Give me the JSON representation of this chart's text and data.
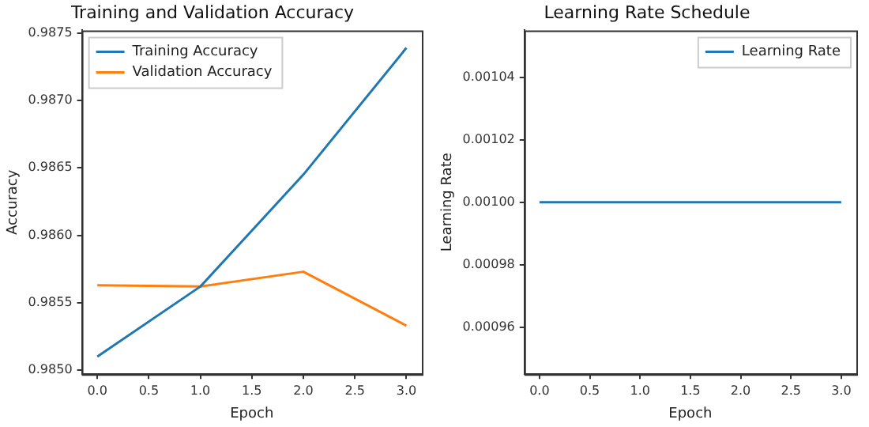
{
  "chart_data": [
    {
      "type": "line",
      "title": "Training and Validation Accuracy",
      "xlabel": "Epoch",
      "ylabel": "Accuracy",
      "x": [
        0,
        1,
        2,
        3
      ],
      "series": [
        {
          "name": "Training Accuracy",
          "color": "#1f77b4",
          "values": [
            0.9851,
            0.98562,
            0.98645,
            0.98739
          ]
        },
        {
          "name": "Validation Accuracy",
          "color": "#ff7f0e",
          "values": [
            0.98563,
            0.98562,
            0.98573,
            0.98533
          ]
        }
      ],
      "xlim": [
        -0.15,
        3.15
      ],
      "ylim": [
        0.98497,
        0.98752
      ],
      "xticks": [
        {
          "value": 0,
          "label": "0.0"
        },
        {
          "value": 0.5,
          "label": "0.5"
        },
        {
          "value": 1,
          "label": "1.0"
        },
        {
          "value": 1.5,
          "label": "1.5"
        },
        {
          "value": 2,
          "label": "2.0"
        },
        {
          "value": 2.5,
          "label": "2.5"
        },
        {
          "value": 3,
          "label": "3.0"
        }
      ],
      "yticks": [
        {
          "value": 0.985,
          "label": "0.9850"
        },
        {
          "value": 0.9855,
          "label": "0.9855"
        },
        {
          "value": 0.986,
          "label": "0.9860"
        },
        {
          "value": 0.9865,
          "label": "0.9865"
        },
        {
          "value": 0.987,
          "label": "0.9870"
        },
        {
          "value": 0.9875,
          "label": "0.9875"
        }
      ],
      "grid": false,
      "legend": "top left",
      "marker": "none",
      "line_style": "solid"
    },
    {
      "type": "line",
      "title": "Learning Rate Schedule",
      "xlabel": "Epoch",
      "ylabel": "Learning Rate",
      "x": [
        0,
        1,
        2,
        3
      ],
      "series": [
        {
          "name": "Learning Rate",
          "color": "#1f77b4",
          "values": [
            0.001,
            0.001,
            0.001,
            0.001
          ]
        }
      ],
      "xlim": [
        -0.15,
        3.15
      ],
      "ylim": [
        0.000945,
        0.001055
      ],
      "xticks": [
        {
          "value": 0,
          "label": "0.0"
        },
        {
          "value": 0.5,
          "label": "0.5"
        },
        {
          "value": 1,
          "label": "1.0"
        },
        {
          "value": 1.5,
          "label": "1.5"
        },
        {
          "value": 2,
          "label": "2.0"
        },
        {
          "value": 2.5,
          "label": "2.5"
        },
        {
          "value": 3,
          "label": "3.0"
        }
      ],
      "yticks": [
        {
          "value": 0.00096,
          "label": "0.00096"
        },
        {
          "value": 0.00098,
          "label": "0.00098"
        },
        {
          "value": 0.001,
          "label": "0.00100"
        },
        {
          "value": 0.00102,
          "label": "0.00102"
        },
        {
          "value": 0.00104,
          "label": "0.00104"
        }
      ],
      "grid": false,
      "legend": "top right",
      "marker": "none",
      "line_style": "solid"
    }
  ]
}
